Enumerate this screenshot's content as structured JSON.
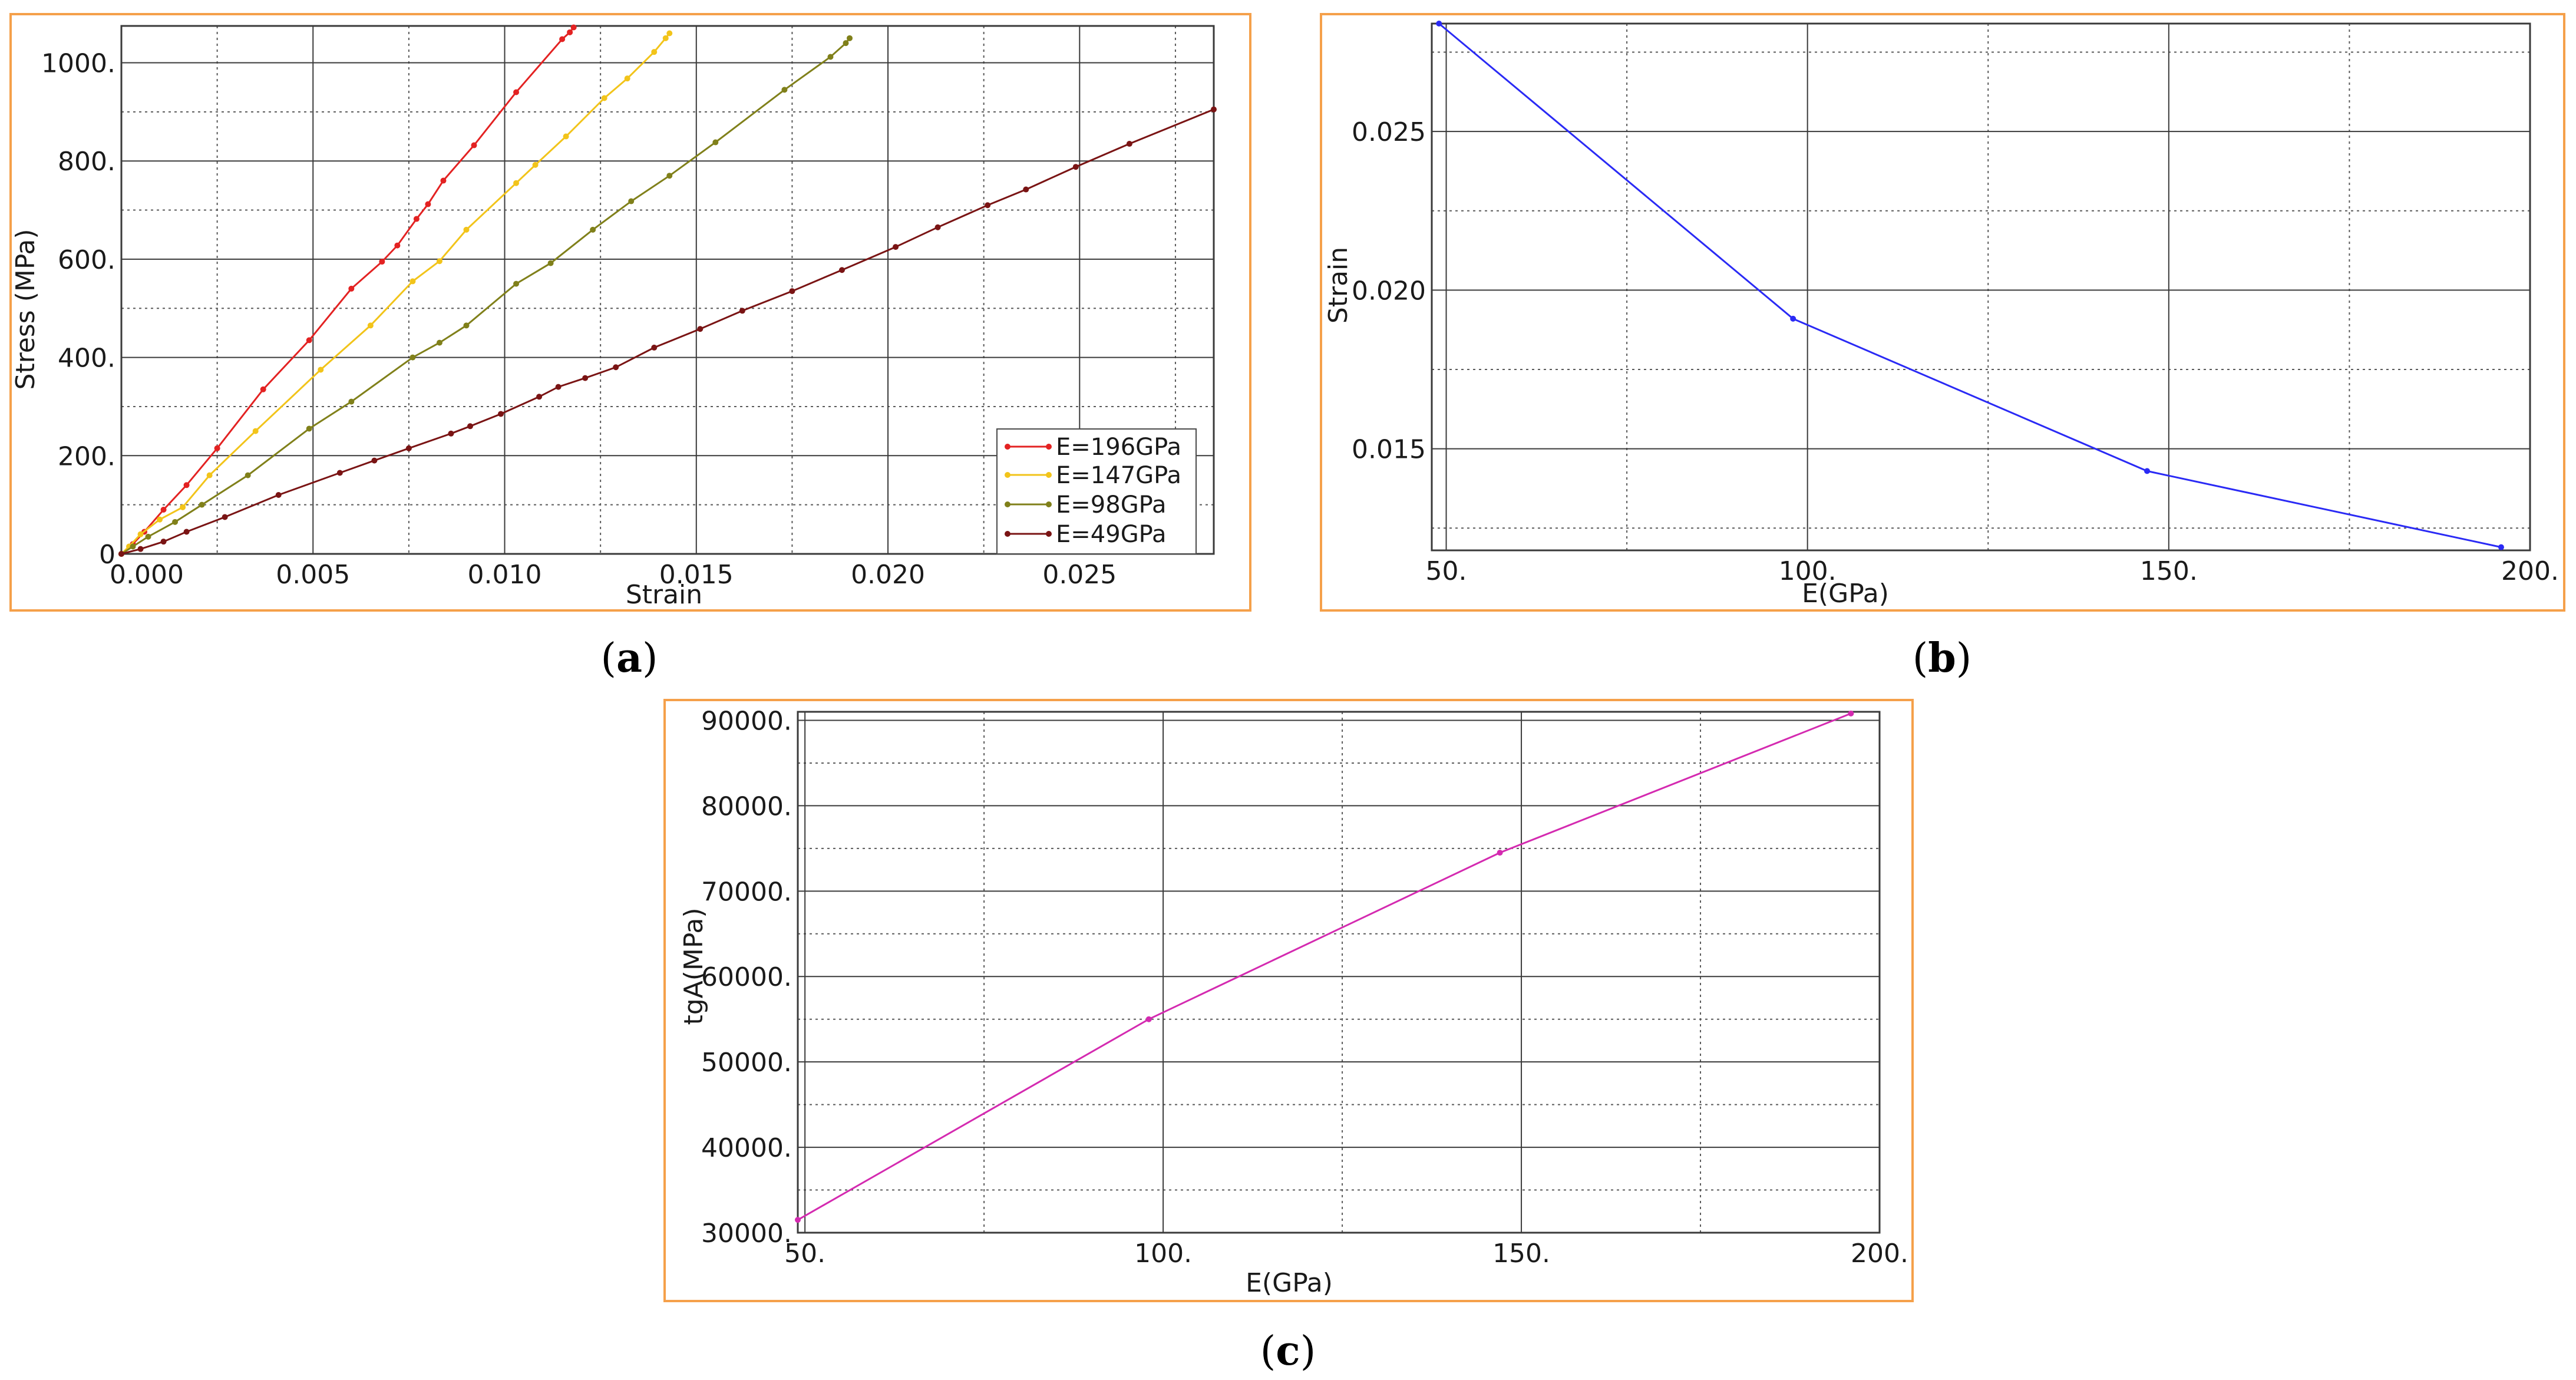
{
  "frame_color": "#f5a04a",
  "chart_data": [
    {
      "id": "a",
      "type": "line",
      "caption": "a",
      "xlabel": "Strain",
      "ylabel": "Stress (MPa)",
      "xlim": [
        0,
        0.0285
      ],
      "ylim": [
        0,
        1075
      ],
      "xticks": [
        0,
        0.005,
        0.01,
        0.015,
        0.02,
        0.025
      ],
      "xtick_labels": [
        "0.000",
        "0.005",
        "0.010",
        "0.015",
        "0.020",
        "0.025"
      ],
      "yticks": [
        0,
        200,
        400,
        600,
        800,
        1000
      ],
      "ytick_labels": [
        "0",
        "200.",
        "400.",
        "600.",
        "800.",
        "1000."
      ],
      "legend_position": "bottom-right",
      "grid": true,
      "series": [
        {
          "name": "E=196GPa",
          "color": "#e32222",
          "x": [
            0,
            0.0003,
            0.0006,
            0.0011,
            0.0017,
            0.0025,
            0.0037,
            0.0049,
            0.006,
            0.0068,
            0.0072,
            0.0077,
            0.008,
            0.0084,
            0.0092,
            0.0103,
            0.0115,
            0.0117,
            0.0118
          ],
          "y": [
            0,
            20,
            45,
            90,
            140,
            215,
            335,
            435,
            540,
            595,
            628,
            682,
            712,
            760,
            832,
            940,
            1048,
            1062,
            1072
          ]
        },
        {
          "name": "E=147GPa",
          "color": "#f2c41a",
          "x": [
            0,
            0.0002,
            0.0005,
            0.001,
            0.0016,
            0.0023,
            0.0035,
            0.0052,
            0.0065,
            0.0076,
            0.0083,
            0.009,
            0.0103,
            0.0108,
            0.0116,
            0.0126,
            0.0132,
            0.0139,
            0.0142,
            0.0143
          ],
          "y": [
            0,
            15,
            40,
            70,
            95,
            160,
            250,
            375,
            465,
            555,
            596,
            660,
            755,
            792,
            850,
            928,
            968,
            1022,
            1050,
            1060
          ]
        },
        {
          "name": "E=98GPa",
          "color": "#80801a",
          "x": [
            0,
            0.0003,
            0.0007,
            0.0014,
            0.0021,
            0.0033,
            0.0049,
            0.006,
            0.0076,
            0.0083,
            0.009,
            0.0103,
            0.0112,
            0.0123,
            0.0133,
            0.0143,
            0.0155,
            0.0173,
            0.0185,
            0.0189,
            0.019
          ],
          "y": [
            0,
            15,
            35,
            65,
            100,
            160,
            255,
            310,
            400,
            430,
            465,
            550,
            592,
            660,
            718,
            770,
            838,
            945,
            1012,
            1040,
            1050
          ]
        },
        {
          "name": "E=49GPa",
          "color": "#7a1414",
          "x": [
            0,
            0.0005,
            0.0011,
            0.0017,
            0.0027,
            0.0041,
            0.0057,
            0.0066,
            0.0075,
            0.0086,
            0.0091,
            0.0099,
            0.0109,
            0.0114,
            0.0121,
            0.0129,
            0.0139,
            0.0151,
            0.0162,
            0.0175,
            0.0188,
            0.0202,
            0.0213,
            0.0226,
            0.0236,
            0.0249,
            0.0263,
            0.0285
          ],
          "y": [
            0,
            10,
            25,
            45,
            75,
            120,
            165,
            190,
            215,
            245,
            260,
            285,
            320,
            340,
            358,
            380,
            420,
            458,
            495,
            535,
            578,
            625,
            665,
            710,
            742,
            788,
            835,
            905
          ]
        }
      ]
    },
    {
      "id": "b",
      "type": "line",
      "caption": "b",
      "xlabel": "E(GPa)",
      "ylabel": "Strain",
      "xlim": [
        48,
        200
      ],
      "ylim": [
        0.0118,
        0.0284
      ],
      "xticks": [
        50,
        100,
        150,
        200
      ],
      "xtick_labels": [
        "50.",
        "100.",
        "150.",
        "200."
      ],
      "yticks": [
        0.015,
        0.02,
        0.025
      ],
      "ytick_labels": [
        "0.015",
        "0.020",
        "0.025"
      ],
      "grid": true,
      "series": [
        {
          "color": "#2a2af5",
          "x": [
            49,
            98,
            147,
            196
          ],
          "y": [
            0.0284,
            0.0191,
            0.0143,
            0.0119
          ]
        }
      ]
    },
    {
      "id": "c",
      "type": "line",
      "caption": "c",
      "xlabel": "E(GPa)",
      "ylabel": "tgA(MPa)",
      "xlim": [
        49,
        200
      ],
      "ylim": [
        30000,
        91000
      ],
      "xticks": [
        50,
        100,
        150,
        200
      ],
      "xtick_labels": [
        "50.",
        "100.",
        "150.",
        "200."
      ],
      "yticks": [
        30000,
        40000,
        50000,
        60000,
        70000,
        80000,
        90000
      ],
      "ytick_labels": [
        "30000.",
        "40000.",
        "50000.",
        "60000.",
        "70000.",
        "80000.",
        "90000."
      ],
      "grid": true,
      "series": [
        {
          "color": "#d42ab0",
          "x": [
            49,
            98,
            147,
            196
          ],
          "y": [
            31500,
            55000,
            74500,
            90800
          ]
        }
      ]
    }
  ]
}
